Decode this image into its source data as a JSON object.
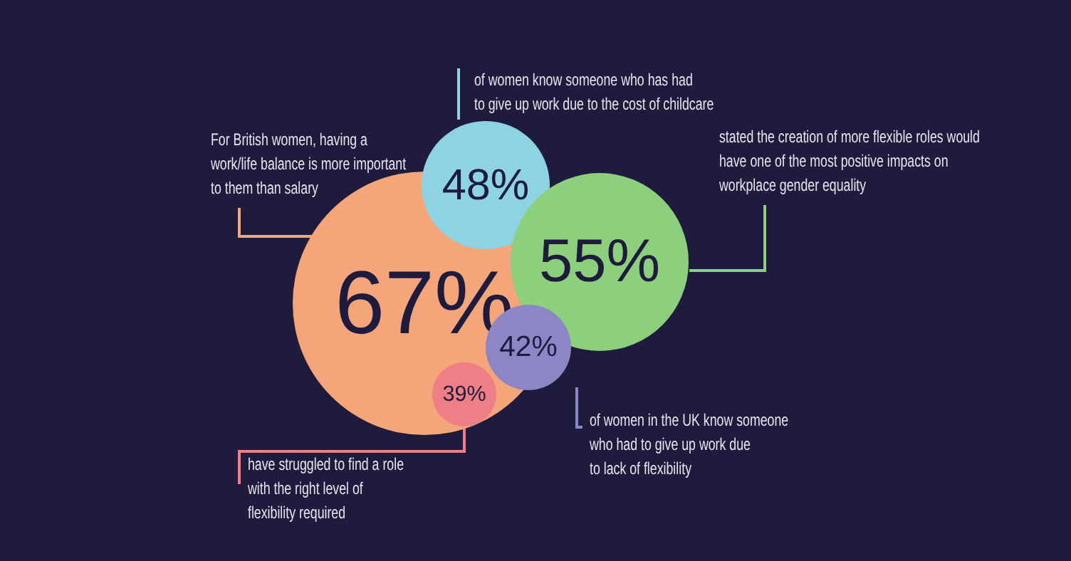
{
  "chart_data": {
    "type": "other",
    "categories": [
      "For British women, having a work/life balance is more important to them than salary",
      "of women know someone who has had to give up work due to the cost of childcare",
      "stated the creation of more flexible roles would have one of the most positive impacts on workplace gender equality",
      "of women in the UK know someone who had to give up work due to lack of flexibility",
      "have struggled to find a role with the right level of flexibility required"
    ],
    "values": [
      67,
      48,
      55,
      42,
      39
    ],
    "value_labels": [
      "67%",
      "48%",
      "55%",
      "42%",
      "39%"
    ],
    "colors": [
      "#f4a67a",
      "#8ed3e4",
      "#8ccf7c",
      "#8d86c6",
      "#ef7f86"
    ]
  }
}
